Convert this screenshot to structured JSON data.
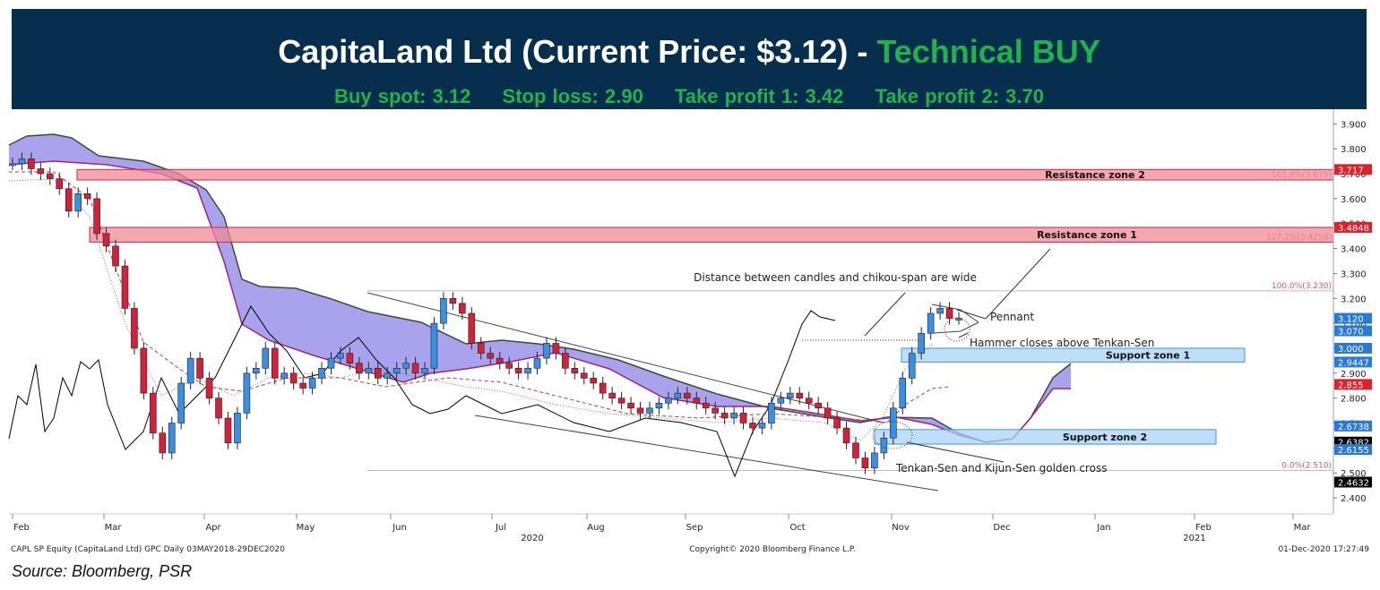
{
  "banner": {
    "title_main": "CapitaLand Ltd (Current Price: $3.12) -",
    "title_highlight": "Technical BUY",
    "buy_spot": "Buy spot: 3.12",
    "stop_loss": "Stop loss: 2.90",
    "take_profit_1": "Take profit 1: 3.42",
    "take_profit_2": "Take profit 2: 3.70",
    "bg_color": "#052f4d",
    "accent_color": "#22b24c"
  },
  "source_note": "Source: Bloomberg, PSR",
  "chart_data": {
    "type": "candlestick",
    "y_axis": {
      "range": [
        2.35,
        3.93
      ],
      "ticks": [
        "3.900",
        "3.800",
        "3.700",
        "3.600",
        "3.500",
        "3.400",
        "3.300",
        "3.200",
        "3.100",
        "3.000",
        "2.900",
        "2.800",
        "2.700",
        "2.600",
        "2.500",
        "2.400"
      ]
    },
    "x_axis": {
      "months": [
        "Feb",
        "Mar",
        "Apr",
        "May",
        "Jun",
        "Jul",
        "Aug",
        "Sep",
        "Oct",
        "Nov",
        "Dec",
        "Jan",
        "Feb",
        "Mar"
      ],
      "years": [
        "2020",
        "2021"
      ]
    },
    "price_flags": [
      {
        "label": "3.717",
        "value": 3.717,
        "color": "#e0212c"
      },
      {
        "label": "3.4848",
        "value": 3.4848,
        "color": "#e0212c"
      },
      {
        "label": "3.120",
        "value": 3.12,
        "color": "#2979d6"
      },
      {
        "label": "3.070",
        "value": 3.07,
        "color": "#2979d6"
      },
      {
        "label": "3.000",
        "value": 3.0,
        "color": "#2979d6"
      },
      {
        "label": "2.9447",
        "value": 2.9447,
        "color": "#2979d6"
      },
      {
        "label": "2.855",
        "value": 2.855,
        "color": "#e0212c"
      },
      {
        "label": "2.6738",
        "value": 2.6738,
        "color": "#2979d6"
      },
      {
        "label": "2.6382",
        "value": 2.6382,
        "color": "#000000"
      },
      {
        "label": "2.6155",
        "value": 2.6155,
        "color": "#2979d6"
      },
      {
        "label": "2.4632",
        "value": 2.4632,
        "color": "#000000"
      }
    ],
    "zones": [
      {
        "label": "Resistance zone 2",
        "low": 3.675,
        "high": 3.717,
        "color": "#f28a96",
        "kind": "resistance"
      },
      {
        "label": "Resistance zone 1",
        "low": 3.4258,
        "high": 3.4848,
        "color": "#f28a96",
        "kind": "resistance"
      },
      {
        "label": "Support zone 1",
        "low": 2.9447,
        "high": 3.0,
        "color": "#a9d4f5",
        "kind": "support"
      },
      {
        "label": "Support zone 2",
        "low": 2.6155,
        "high": 2.6738,
        "color": "#a9d4f5",
        "kind": "support"
      }
    ],
    "fibonacci": [
      {
        "label": "161.8%(3.675)",
        "value": 3.675
      },
      {
        "label": "127.2%(3.4258)",
        "value": 3.4258
      },
      {
        "label": "100.0%(3.230)",
        "value": 3.23
      },
      {
        "label": "0.0%(2.510)",
        "value": 2.51
      }
    ],
    "annotations": [
      "Distance between candles and chikou-span are wide",
      "Pennant",
      "Hammer closes above Tenkan-Sen",
      "Tenkan-Sen and Kijun-Sen golden cross"
    ],
    "footer_left": "CAPL SP Equity (CapitaLand Ltd) GPC  Daily 03MAY2018-29DEC2020",
    "footer_center": "Copyright© 2020 Bloomberg Finance L.P.",
    "footer_right": "01-Dec-2020 17:27:49",
    "close_series": [
      3.74,
      3.76,
      3.72,
      3.7,
      3.68,
      3.64,
      3.55,
      3.62,
      3.6,
      3.46,
      3.41,
      3.33,
      3.16,
      3.0,
      2.82,
      2.66,
      2.58,
      2.7,
      2.86,
      2.96,
      2.88,
      2.8,
      2.72,
      2.62,
      2.74,
      2.9,
      2.92,
      3.0,
      2.88,
      2.9,
      2.86,
      2.84,
      2.88,
      2.92,
      2.96,
      2.98,
      2.94,
      2.9,
      2.92,
      2.88,
      2.9,
      2.92,
      2.94,
      2.9,
      2.92,
      3.1,
      3.2,
      3.18,
      3.14,
      3.02,
      2.98,
      2.96,
      2.94,
      2.92,
      2.9,
      2.92,
      2.96,
      3.02,
      2.98,
      2.92,
      2.9,
      2.88,
      2.86,
      2.82,
      2.8,
      2.78,
      2.76,
      2.74,
      2.76,
      2.78,
      2.8,
      2.82,
      2.8,
      2.78,
      2.76,
      2.74,
      2.72,
      2.74,
      2.7,
      2.68,
      2.7,
      2.78,
      2.8,
      2.82,
      2.8,
      2.78,
      2.76,
      2.72,
      2.68,
      2.62,
      2.56,
      2.52,
      2.58,
      2.64,
      2.76,
      2.88,
      2.98,
      3.06,
      3.14,
      3.16,
      3.12,
      3.12
    ]
  }
}
